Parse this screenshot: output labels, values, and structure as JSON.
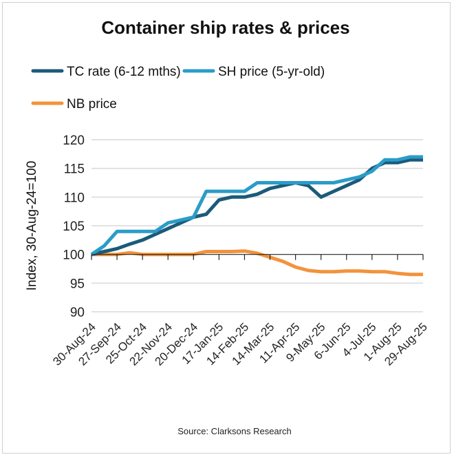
{
  "chart_data": {
    "type": "line",
    "title": "Container ship rates & prices",
    "ylabel": "Index, 30-Aug-24=100",
    "xlabel": "",
    "source": "Source: Clarksons Research",
    "ylim": [
      90,
      120
    ],
    "yticks": [
      90,
      95,
      100,
      105,
      110,
      115,
      120
    ],
    "grid": true,
    "legend_position": "top",
    "x_weeks": [
      0,
      2,
      4,
      6,
      8,
      10,
      12,
      14,
      16,
      18,
      20,
      22,
      24,
      26,
      28,
      30,
      32,
      34,
      36,
      38,
      40,
      42,
      44,
      46,
      48,
      50,
      52
    ],
    "xtick_weeks": [
      0,
      4,
      8,
      12,
      16,
      20,
      24,
      28,
      32,
      36,
      40,
      44,
      48,
      52
    ],
    "xtick_labels": [
      "30-Aug-24",
      "27-Sep-24",
      "25-Oct-24",
      "22-Nov-24",
      "20-Dec-24",
      "17-Jan-25",
      "14-Feb-25",
      "14-Mar-25",
      "11-Apr-25",
      "9-May-25",
      "6-Jun-25",
      "4-Jul-25",
      "1-Aug-25",
      "29-Aug-25"
    ],
    "series": [
      {
        "name": "TC rate (6-12 mths)",
        "color": "#1b5a7a",
        "values": [
          100,
          100.5,
          101,
          101.8,
          102.5,
          103.5,
          104.5,
          105.5,
          106.5,
          107,
          109.5,
          110,
          110,
          110.5,
          111.5,
          112,
          112.5,
          112,
          110,
          111,
          112,
          113,
          115,
          116,
          116,
          116.5,
          116.5
        ]
      },
      {
        "name": "SH price (5-yr-old)",
        "color": "#2a9cc8",
        "values": [
          100,
          101.5,
          104,
          104,
          104,
          104,
          105.5,
          106,
          106.5,
          111,
          111,
          111,
          111,
          112.5,
          112.5,
          112.5,
          112.5,
          112.5,
          112.5,
          112.5,
          113,
          113.5,
          114.5,
          116.5,
          116.5,
          117,
          117
        ]
      },
      {
        "name": "NB price",
        "color": "#f2933b",
        "values": [
          100,
          100,
          100,
          100.3,
          100,
          100,
          100,
          100,
          100,
          100.5,
          100.5,
          100.5,
          100.6,
          100.2,
          99.5,
          98.8,
          97.8,
          97.2,
          97,
          97,
          97.1,
          97.1,
          97,
          97,
          96.7,
          96.5,
          96.5
        ]
      }
    ]
  }
}
